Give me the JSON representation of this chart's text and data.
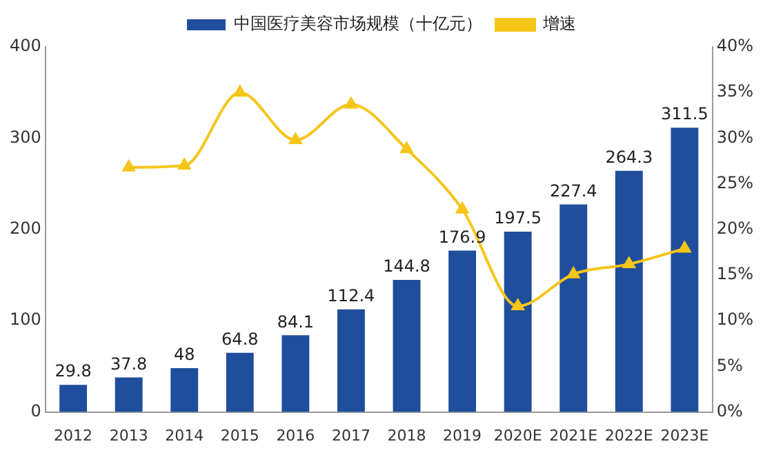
{
  "chart_data": {
    "type": "bar",
    "categories": [
      "2012",
      "2013",
      "2014",
      "2015",
      "2016",
      "2017",
      "2018",
      "2019",
      "2020E",
      "2021E",
      "2022E",
      "2023E"
    ],
    "series": [
      {
        "name": "中国医疗美容市场规模（十亿元）",
        "color": "#1f4e9c",
        "values": [
          29.8,
          37.8,
          48,
          64.8,
          84.1,
          112.4,
          144.8,
          176.9,
          197.5,
          227.4,
          264.3,
          311.5
        ],
        "value_labels": [
          "29.8",
          "37.8",
          "48",
          "64.8",
          "84.1",
          "112.4",
          "144.8",
          "176.9",
          "197.5",
          "227.4",
          "264.3",
          "311.5"
        ]
      },
      {
        "name": "增速",
        "type": "line",
        "axis": "y2",
        "color": "#f5c518",
        "marker": "triangle",
        "values": [
          null,
          26.8,
          27.0,
          35.0,
          29.8,
          33.7,
          28.8,
          22.2,
          11.6,
          15.1,
          16.2,
          17.9
        ]
      }
    ],
    "ylim": [
      0,
      400
    ],
    "yticks": [
      0,
      100,
      200,
      300,
      400
    ],
    "y2lim": [
      0,
      40
    ],
    "y2ticks": [
      {
        "value": 0,
        "label": "0%"
      },
      {
        "value": 5,
        "label": "5%"
      },
      {
        "value": 10,
        "label": "10%"
      },
      {
        "value": 15,
        "label": "15%"
      },
      {
        "value": 20,
        "label": "20%"
      },
      {
        "value": 25,
        "label": "25%"
      },
      {
        "value": 30,
        "label": "30%"
      },
      {
        "value": 35,
        "label": "35%"
      },
      {
        "value": 40,
        "label": "40%"
      }
    ],
    "grid": false,
    "legend": "top"
  }
}
